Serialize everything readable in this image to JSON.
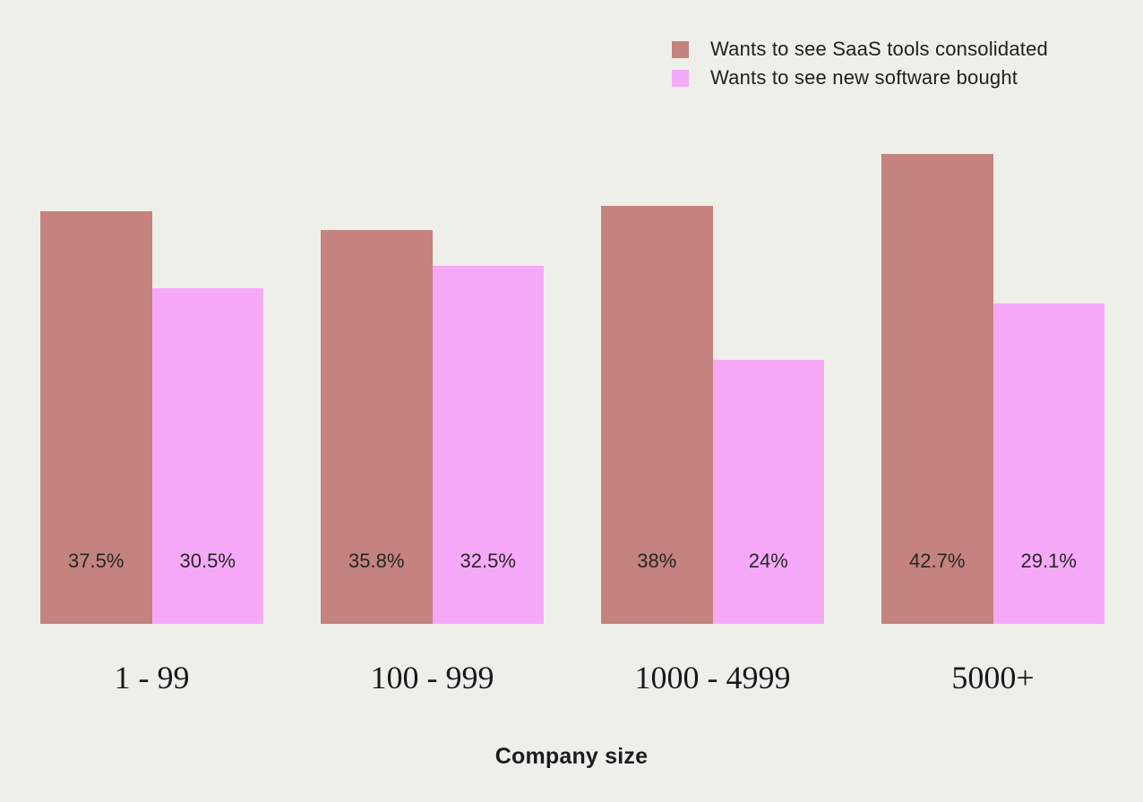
{
  "background_color": "#efefe9",
  "text_color": "#1f1f1f",
  "legend": {
    "position": "top-right",
    "items": [
      {
        "name": "consolidated",
        "label": "Wants to see SaaS tools consolidated",
        "color": "#c4837f"
      },
      {
        "name": "new-software",
        "label": "Wants to see new software bought",
        "color": "#f6a9f8"
      }
    ]
  },
  "chart_data": {
    "type": "bar",
    "title": "",
    "xlabel": "Company size",
    "ylabel": "",
    "categories": [
      "1 - 99",
      "100 - 999",
      "1000 - 4999",
      "5000+"
    ],
    "series": [
      {
        "name": "Wants to see SaaS tools consolidated",
        "color": "#c4837f",
        "values": [
          37.5,
          35.8,
          38,
          42.7
        ],
        "display_labels": [
          "37.5%",
          "35.8%",
          "38%",
          "42.7%"
        ]
      },
      {
        "name": "Wants to see new software bought",
        "color": "#f6a9f8",
        "values": [
          30.5,
          32.5,
          24,
          29.1
        ],
        "display_labels": [
          "30.5%",
          "32.5%",
          "24%",
          "29.1%"
        ]
      }
    ],
    "ylim": [
      0,
      45
    ],
    "grid": false,
    "legend_position": "top-right",
    "value_labels": "inside-bottom"
  }
}
